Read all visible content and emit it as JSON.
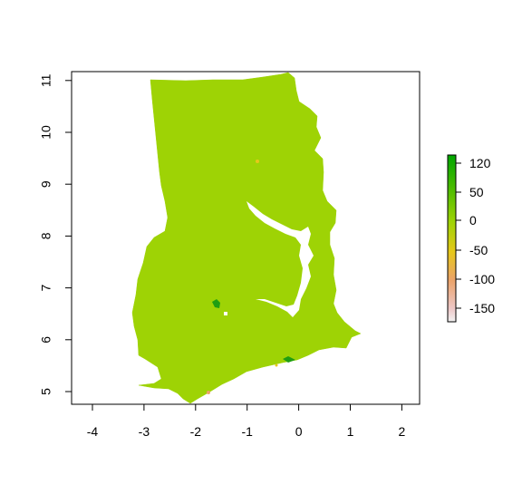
{
  "map": {
    "x_ticks": [
      "-4",
      "-3",
      "-2",
      "-1",
      "0",
      "1",
      "2"
    ],
    "y_ticks": [
      "5",
      "6",
      "7",
      "8",
      "9",
      "10",
      "11"
    ],
    "fill_color": "#9ED305",
    "lake_color": "#ffffff"
  },
  "legend": {
    "ticks": [
      "120",
      "50",
      "0",
      "-50",
      "-100",
      "-150"
    ],
    "gradient": [
      {
        "value": 120,
        "color": "#00A600"
      },
      {
        "value": 60,
        "color": "#4CBC00"
      },
      {
        "value": 0,
        "color": "#9ED305"
      },
      {
        "value": -50,
        "color": "#E6C81A"
      },
      {
        "value": -100,
        "color": "#EBA36A"
      },
      {
        "value": -150,
        "color": "#EDC7C7"
      },
      {
        "value": -175,
        "color": "#F2F2F2"
      }
    ]
  }
}
